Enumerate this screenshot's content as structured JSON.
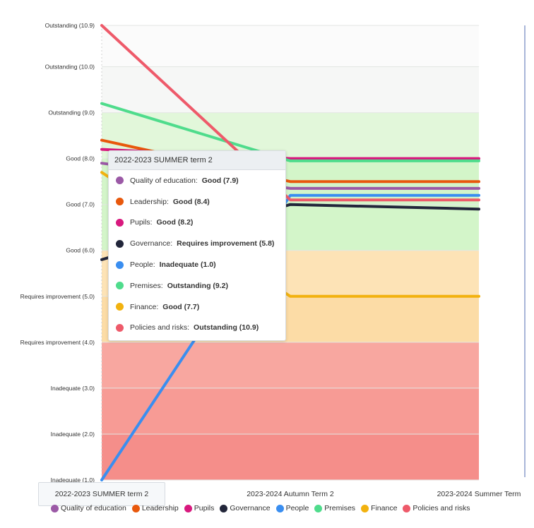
{
  "chart_data": {
    "type": "line",
    "title": "",
    "xlabel": "",
    "ylabel": "",
    "categories": [
      "2022-2023 SUMMER term 2",
      "2023-2024 Autumn Term 2",
      "2023-2024 Summer Term"
    ],
    "ylim": [
      1.0,
      10.9
    ],
    "y_ticks": [
      {
        "value": 10.9,
        "label": "Outstanding (10.9)"
      },
      {
        "value": 10.0,
        "label": "Outstanding (10.0)"
      },
      {
        "value": 9.0,
        "label": "Outstanding (9.0)"
      },
      {
        "value": 8.0,
        "label": "Good (8.0)"
      },
      {
        "value": 7.0,
        "label": "Good (7.0)"
      },
      {
        "value": 6.0,
        "label": "Good (6.0)"
      },
      {
        "value": 5.0,
        "label": "Requires improvement (5.0)"
      },
      {
        "value": 4.0,
        "label": "Requires improvement (4.0)"
      },
      {
        "value": 3.0,
        "label": "Inadequate (3.0)"
      },
      {
        "value": 2.0,
        "label": "Inadequate (2.0)"
      },
      {
        "value": 1.0,
        "label": "Inadequate (1.0)"
      }
    ],
    "bands": [
      {
        "from": 10.0,
        "to": 10.9,
        "color": "#fbfbfb"
      },
      {
        "from": 9.0,
        "to": 10.0,
        "color": "#f6f7f6"
      },
      {
        "from": 8.0,
        "to": 9.0,
        "color": "#e2f7da"
      },
      {
        "from": 6.0,
        "to": 8.0,
        "color": "#d3f5c9"
      },
      {
        "from": 5.0,
        "to": 6.0,
        "color": "#fde3b6"
      },
      {
        "from": 4.0,
        "to": 5.0,
        "color": "#fcdca6"
      },
      {
        "from": 3.0,
        "to": 4.0,
        "color": "#f8a7a0"
      },
      {
        "from": 2.0,
        "to": 3.0,
        "color": "#f79b95"
      },
      {
        "from": 1.0,
        "to": 2.0,
        "color": "#f58e8a"
      }
    ],
    "series": [
      {
        "name": "Quality of education",
        "color": "#9b59a6",
        "values": [
          7.9,
          7.35,
          7.35
        ]
      },
      {
        "name": "Leadership",
        "color": "#e8580c",
        "values": [
          8.4,
          7.5,
          7.5
        ]
      },
      {
        "name": "Pupils",
        "color": "#d8197e",
        "values": [
          8.2,
          8.0,
          8.0
        ]
      },
      {
        "name": "Governance",
        "color": "#22263a",
        "values": [
          5.8,
          7.0,
          6.9
        ]
      },
      {
        "name": "People",
        "color": "#3a8ef0",
        "values": [
          1.0,
          7.2,
          7.2
        ]
      },
      {
        "name": "Premises",
        "color": "#4fdc8c",
        "values": [
          9.2,
          7.95,
          7.95
        ]
      },
      {
        "name": "Finance",
        "color": "#f2b20f",
        "values": [
          7.7,
          5.0,
          5.0
        ]
      },
      {
        "name": "Policies and risks",
        "color": "#ee5a6a",
        "values": [
          10.9,
          7.1,
          7.1
        ]
      }
    ],
    "legend_position": "bottom",
    "grid": true
  },
  "tooltip": {
    "title": "2022-2023 SUMMER term 2",
    "rows": [
      {
        "name": "Quality of education:",
        "value": "Good (7.9)",
        "color": "#9b59a6"
      },
      {
        "name": "Leadership:",
        "value": "Good (8.4)",
        "color": "#e8580c"
      },
      {
        "name": "Pupils:",
        "value": "Good (8.2)",
        "color": "#d8197e"
      },
      {
        "name": "Governance:",
        "value": "Requires improvement (5.8)",
        "color": "#22263a"
      },
      {
        "name": "People:",
        "value": "Inadequate (1.0)",
        "color": "#3a8ef0"
      },
      {
        "name": "Premises:",
        "value": "Outstanding (9.2)",
        "color": "#4fdc8c"
      },
      {
        "name": "Finance:",
        "value": "Good (7.7)",
        "color": "#f2b20f"
      },
      {
        "name": "Policies and risks:",
        "value": "Outstanding (10.9)",
        "color": "#ee5a6a"
      }
    ]
  },
  "axis_pointer_label": "2022-2023 SUMMER term 2"
}
